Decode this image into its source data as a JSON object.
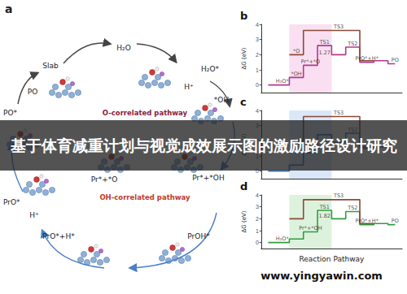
{
  "banner": "基于体育减重计划与视觉成效展示图的激励路径设计研究",
  "watermark": "www.yingyawin.com",
  "panel_a": {
    "label": "a",
    "species": {
      "slab": "Slab",
      "h2o": "H₂O",
      "h2o_ads": "H₂O*",
      "h_plus_top": "H⁺",
      "oh": "*OH",
      "po": "PO",
      "po_ads": "PO*",
      "pr_o": "Pr*+*O",
      "pr_oh": "Pr*+*OH",
      "proh": "PrOH*",
      "pro_h": "PrO*+H*",
      "h_plus_bottom": "H⁺",
      "pro": "PrO*"
    },
    "pathways": {
      "o": "O-correlated pathway",
      "oh": "OH-correlated pathway"
    }
  },
  "chart_data": [
    {
      "type": "line",
      "title": "b",
      "y_label": "ΔG (eV)",
      "categories": [
        null,
        null,
        null,
        null,
        null,
        null,
        null,
        null,
        null,
        null
      ],
      "series": [
        {
          "color": "#b03a8e",
          "values": [
            0.0,
            0.0,
            0.5,
            1.3,
            2.6,
            2.0,
            2.5,
            1.5,
            1.6,
            1.4
          ]
        },
        {
          "color": "#8b4a3a",
          "values": [
            null,
            null,
            2.0,
            3.6,
            3.6,
            3.6,
            3.6,
            1.6,
            null,
            null
          ]
        }
      ],
      "annotations": [
        {
          "text": "H₂O*",
          "x": 1,
          "y": 0.0
        },
        {
          "text": "*OH",
          "x": 2,
          "y": 0.5
        },
        {
          "text": "*O",
          "x": 2,
          "y": 2.0
        },
        {
          "text": "Pr*+*O",
          "x": 3,
          "y": 1.3
        },
        {
          "text": "TS1",
          "x": 4,
          "y": 2.6
        },
        {
          "text": "1.27",
          "x": 4,
          "y": 1.9
        },
        {
          "text": "TS3",
          "x": 5,
          "y": 3.6
        },
        {
          "text": "TS2",
          "x": 6,
          "y": 2.5
        },
        {
          "text": "PrO*+H*",
          "x": 7,
          "y": 1.5
        },
        {
          "text": "PO",
          "x": 9,
          "y": 1.4
        }
      ],
      "ylim": [
        -0.5,
        4
      ],
      "yticks": [
        0,
        1,
        2,
        3,
        4
      ],
      "tick_labels": "y",
      "grid": false
    },
    {
      "type": "line",
      "title": "c",
      "y_label": "ΔG (eV)",
      "categories": [
        null,
        null,
        null,
        null,
        null,
        null,
        null,
        null,
        null,
        null
      ],
      "series": [
        {
          "color": "#3a78c8",
          "values": [
            0.0,
            0.0,
            0.4,
            1.2,
            2.4,
            1.9,
            2.5,
            1.5,
            1.6,
            1.4
          ]
        },
        {
          "color": "#8b4a3a",
          "values": [
            null,
            null,
            2.0,
            3.6,
            3.6,
            3.6,
            3.6,
            1.6,
            null,
            null
          ]
        }
      ],
      "annotations": [
        {
          "text": "TS3",
          "x": 5,
          "y": 3.6
        },
        {
          "text": "TS2",
          "x": 6,
          "y": 2.5
        }
      ],
      "ylim": [
        -0.5,
        4
      ],
      "yticks": [
        0,
        1,
        2,
        3,
        4
      ],
      "tick_labels": "y",
      "grid": false
    },
    {
      "type": "line",
      "title": "d",
      "y_label": "ΔG (eV)",
      "x_label": "Reaction Pathway",
      "categories": [
        null,
        null,
        null,
        null,
        null,
        null,
        null,
        null,
        null,
        null
      ],
      "series": [
        {
          "color": "#2e9e3e",
          "values": [
            0.0,
            0.0,
            0.3,
            0.9,
            2.7,
            2.0,
            2.6,
            1.5,
            1.6,
            1.5
          ]
        },
        {
          "color": "#8b4a3a",
          "values": [
            null,
            null,
            2.0,
            3.6,
            3.6,
            3.6,
            3.6,
            1.6,
            null,
            null
          ]
        }
      ],
      "annotations": [
        {
          "text": "H₂O*",
          "x": 1,
          "y": 0.0
        },
        {
          "text": "Pr*+*OH",
          "x": 3,
          "y": 0.9
        },
        {
          "text": "TS1",
          "x": 4,
          "y": 2.7
        },
        {
          "text": "1.82",
          "x": 4,
          "y": 1.9
        },
        {
          "text": "TS3",
          "x": 5,
          "y": 3.6
        },
        {
          "text": "TS2",
          "x": 6,
          "y": 2.6
        },
        {
          "text": "PrO*+H*",
          "x": 7,
          "y": 1.5
        },
        {
          "text": "PO",
          "x": 9,
          "y": 1.5
        }
      ],
      "ylim": [
        -0.5,
        4
      ],
      "yticks": [
        0,
        1,
        2,
        3,
        4
      ],
      "tick_labels": "y",
      "grid": false
    }
  ]
}
